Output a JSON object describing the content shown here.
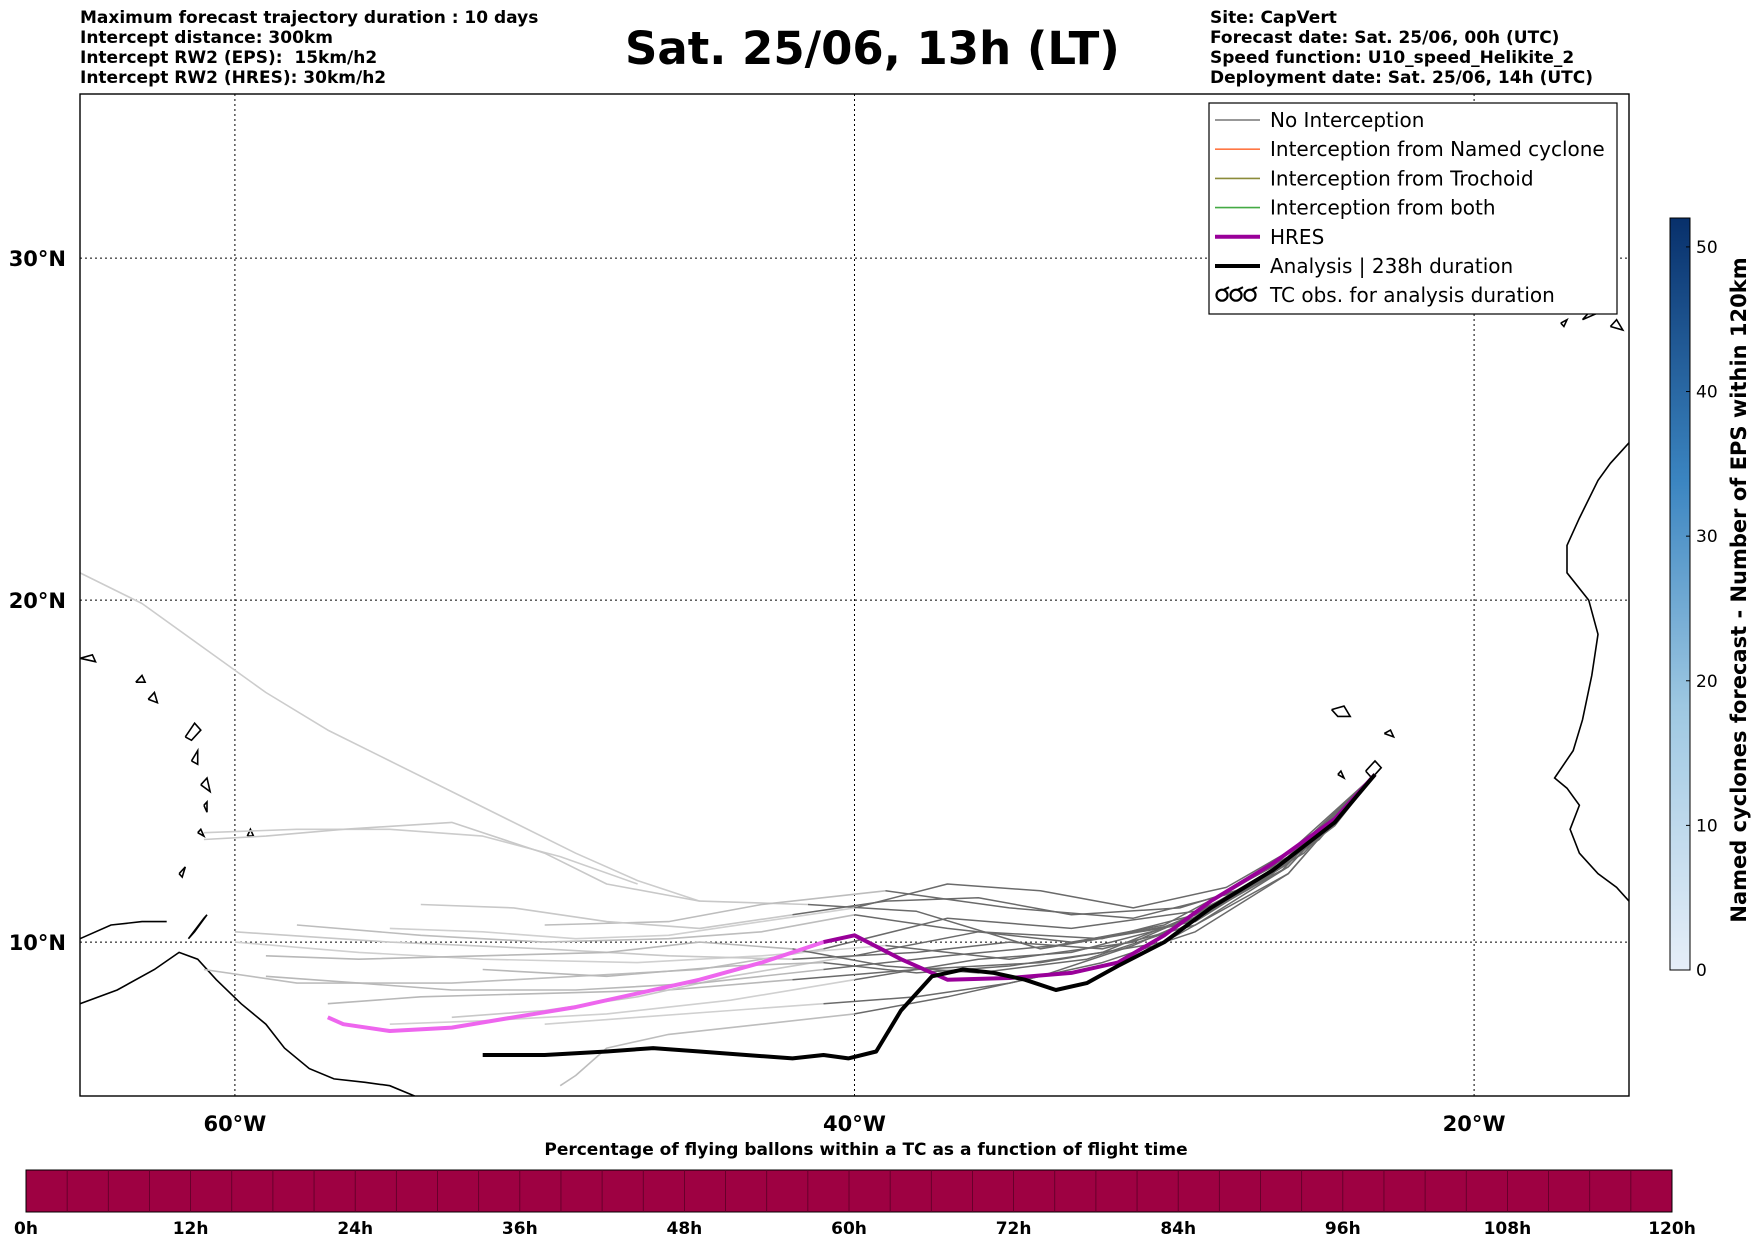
{
  "title": "Sat. 25/06, 13h (LT)",
  "header_left": [
    "Maximum forecast trajectory duration : 10 days",
    "Intercept distance: 300km",
    "Intercept RW2 (EPS):  15km/h2",
    "Intercept RW2 (HRES): 30km/h2"
  ],
  "header_right": [
    "Site: CapVert",
    "Forecast date: Sat. 25/06, 00h (UTC)",
    "Speed function: U10_speed_Helikite_2",
    "Deployment date: Sat. 25/06, 14h (UTC)"
  ],
  "map": {
    "lon_range": [
      -65,
      -15
    ],
    "lat_range": [
      5.5,
      34.8
    ],
    "lon_ticks": [
      -60,
      -40,
      -20
    ],
    "lon_tick_labels": [
      "60°W",
      "40°W",
      "20°W"
    ],
    "lat_ticks": [
      10,
      20,
      30
    ],
    "lat_tick_labels": [
      "10°N",
      "20°N",
      "30°N"
    ],
    "grid": true,
    "launch_site": {
      "lon": -23.2,
      "lat": 14.9
    }
  },
  "legend": {
    "placement": "top-right",
    "items": [
      {
        "label": "No Interception",
        "color": "#777777",
        "style": "thin-line"
      },
      {
        "label": "Interception from Named cyclone",
        "color": "#ff7744",
        "style": "thin-line"
      },
      {
        "label": "Interception from Trochoid",
        "color": "#8b8b3a",
        "style": "thin-line"
      },
      {
        "label": "Interception from both",
        "color": "#44aa44",
        "style": "thin-line"
      },
      {
        "label": "HRES",
        "color": "#990099",
        "style": "thick-line"
      },
      {
        "label": "Analysis | 238h duration",
        "color": "#000000",
        "style": "thick-line"
      },
      {
        "label": "TC obs. for analysis duration",
        "color": "#000000",
        "style": "tc-symbol"
      }
    ]
  },
  "trajectories": {
    "hres": [
      [
        -23.2,
        14.9
      ],
      [
        -24.5,
        13.6
      ],
      [
        -26.5,
        12.3
      ],
      [
        -28.5,
        11.2
      ],
      [
        -30,
        10.2
      ],
      [
        -31.5,
        9.4
      ],
      [
        -33,
        9.1
      ],
      [
        -35,
        8.95
      ],
      [
        -37,
        8.9
      ],
      [
        -38.5,
        9.5
      ],
      [
        -40,
        10.2
      ],
      [
        -41,
        10.0
      ],
      [
        -43,
        9.4
      ],
      [
        -45,
        8.9
      ],
      [
        -47,
        8.5
      ],
      [
        -49,
        8.1
      ],
      [
        -51,
        7.8
      ],
      [
        -53,
        7.5
      ],
      [
        -55,
        7.4
      ],
      [
        -56.5,
        7.6
      ],
      [
        -57,
        7.8
      ]
    ],
    "analysis": [
      [
        -23.2,
        14.9
      ],
      [
        -24.5,
        13.5
      ],
      [
        -26.5,
        12.1
      ],
      [
        -28.5,
        11.0
      ],
      [
        -30,
        10.0
      ],
      [
        -31.5,
        9.3
      ],
      [
        -32.5,
        8.8
      ],
      [
        -33.5,
        8.6
      ],
      [
        -34.5,
        8.9
      ],
      [
        -35.5,
        9.1
      ],
      [
        -36.5,
        9.2
      ],
      [
        -37.5,
        9.0
      ],
      [
        -38.5,
        8.0
      ],
      [
        -39.3,
        6.8
      ],
      [
        -40.2,
        6.6
      ],
      [
        -41,
        6.7
      ],
      [
        -42,
        6.6
      ],
      [
        -43.5,
        6.7
      ],
      [
        -45,
        6.8
      ],
      [
        -46.5,
        6.9
      ],
      [
        -48,
        6.8
      ],
      [
        -50,
        6.7
      ],
      [
        -52,
        6.7
      ]
    ],
    "ensemble": [
      [
        [
          -23.2,
          14.9
        ],
        [
          -26,
          12.5
        ],
        [
          -29,
          10.9
        ],
        [
          -33,
          10.4
        ],
        [
          -37,
          10.7
        ],
        [
          -41,
          9.8
        ],
        [
          -45,
          9.2
        ],
        [
          -49,
          9.0
        ],
        [
          -53,
          8.8
        ],
        [
          -58,
          8.8
        ],
        [
          -61,
          9.2
        ]
      ],
      [
        [
          -23.2,
          14.9
        ],
        [
          -25.5,
          12.8
        ],
        [
          -28,
          11.2
        ],
        [
          -31,
          10.0
        ],
        [
          -35,
          9.5
        ],
        [
          -39,
          9.9
        ],
        [
          -43,
          9.6
        ],
        [
          -47,
          9.4
        ],
        [
          -52,
          9.5
        ],
        [
          -56,
          9.7
        ],
        [
          -60,
          10.0
        ]
      ],
      [
        [
          -23.2,
          14.9
        ],
        [
          -26,
          12.2
        ],
        [
          -29.5,
          10.5
        ],
        [
          -34,
          9.8
        ],
        [
          -38,
          10.9
        ],
        [
          -41.5,
          11.1
        ],
        [
          -45,
          11.2
        ],
        [
          -48,
          11.7
        ],
        [
          -50,
          12.6
        ],
        [
          -53,
          13.5
        ],
        [
          -56.5,
          13.3
        ],
        [
          -59,
          13.1
        ],
        [
          -61,
          13.0
        ]
      ],
      [
        [
          -23.2,
          14.9
        ],
        [
          -26,
          12.0
        ],
        [
          -30,
          10.0
        ],
        [
          -34,
          9.4
        ],
        [
          -38,
          9.2
        ],
        [
          -42,
          8.9
        ],
        [
          -46,
          8.6
        ],
        [
          -50,
          8.5
        ],
        [
          -54,
          8.4
        ],
        [
          -57,
          8.2
        ]
      ],
      [
        [
          -23.2,
          14.9
        ],
        [
          -25,
          13.0
        ],
        [
          -27.5,
          11.5
        ],
        [
          -31,
          10.7
        ],
        [
          -35,
          11.0
        ],
        [
          -39,
          11.5
        ],
        [
          -43,
          11.1
        ],
        [
          -46,
          10.6
        ],
        [
          -50,
          10.5
        ]
      ],
      [
        [
          -23.2,
          14.9
        ],
        [
          -26.5,
          12.0
        ],
        [
          -30,
          10.4
        ],
        [
          -33,
          9.7
        ],
        [
          -36,
          9.5
        ],
        [
          -40,
          8.9
        ],
        [
          -44,
          8.3
        ],
        [
          -48,
          7.9
        ],
        [
          -52,
          7.7
        ],
        [
          -55,
          7.6
        ]
      ],
      [
        [
          -23.2,
          14.9
        ],
        [
          -26,
          12.4
        ],
        [
          -29,
          10.8
        ],
        [
          -32,
          10.1
        ],
        [
          -36,
          10.3
        ],
        [
          -40,
          9.6
        ],
        [
          -44,
          9.0
        ],
        [
          -47,
          8.4
        ],
        [
          -50,
          8.0
        ],
        [
          -53,
          7.8
        ]
      ],
      [
        [
          -23.2,
          14.9
        ],
        [
          -25.5,
          12.6
        ],
        [
          -28.5,
          11.0
        ],
        [
          -32,
          9.7
        ],
        [
          -35,
          9.3
        ],
        [
          -38,
          9.1
        ],
        [
          -41,
          9.4
        ],
        [
          -44,
          9.3
        ],
        [
          -48,
          9.0
        ],
        [
          -52,
          9.2
        ]
      ],
      [
        [
          -23.2,
          14.9
        ],
        [
          -26,
          12.3
        ],
        [
          -29,
          10.6
        ],
        [
          -33,
          10.0
        ],
        [
          -37,
          10.4
        ],
        [
          -40,
          10.8
        ],
        [
          -43,
          10.3
        ],
        [
          -46,
          10.1
        ],
        [
          -50,
          10.0
        ],
        [
          -54,
          10.2
        ],
        [
          -58,
          10.5
        ]
      ],
      [
        [
          -23.2,
          14.9
        ],
        [
          -26,
          12.0
        ],
        [
          -29,
          10.3
        ],
        [
          -32,
          9.4
        ],
        [
          -35,
          8.8
        ],
        [
          -38,
          8.4
        ],
        [
          -41,
          8.2
        ],
        [
          -44,
          8.0
        ],
        [
          -47,
          7.8
        ],
        [
          -50,
          7.6
        ]
      ],
      [
        [
          -23.2,
          14.9
        ],
        [
          -24.5,
          13.4
        ],
        [
          -27,
          11.7
        ],
        [
          -29.5,
          11.0
        ],
        [
          -33,
          10.8
        ],
        [
          -36,
          11.3
        ],
        [
          -39,
          11.2
        ],
        [
          -42,
          10.8
        ],
        [
          -45,
          10.4
        ],
        [
          -48,
          10.6
        ],
        [
          -51,
          11.0
        ],
        [
          -54,
          11.1
        ]
      ],
      [
        [
          -23.2,
          14.9
        ],
        [
          -26.5,
          12.2
        ],
        [
          -30,
          10.5
        ],
        [
          -33.5,
          9.9
        ],
        [
          -37,
          9.6
        ],
        [
          -41,
          9.2
        ],
        [
          -45,
          8.8
        ],
        [
          -49,
          8.6
        ],
        [
          -53,
          8.6
        ],
        [
          -56,
          8.8
        ],
        [
          -59,
          9.0
        ]
      ],
      [
        [
          -23.2,
          14.9
        ],
        [
          -26,
          12.4
        ],
        [
          -28.5,
          10.9
        ],
        [
          -31,
          9.9
        ],
        [
          -34,
          9.0
        ],
        [
          -37,
          8.4
        ],
        [
          -40,
          7.9
        ],
        [
          -43,
          7.6
        ],
        [
          -46,
          7.3
        ],
        [
          -48,
          6.9
        ],
        [
          -49,
          6.1
        ],
        [
          -49.5,
          5.8
        ]
      ],
      [
        [
          -23.2,
          14.9
        ],
        [
          -25.5,
          12.9
        ],
        [
          -28,
          11.6
        ],
        [
          -31,
          11.0
        ],
        [
          -34,
          11.5
        ],
        [
          -37,
          11.7
        ],
        [
          -40,
          11.0
        ],
        [
          -43,
          10.6
        ],
        [
          -46,
          10.2
        ],
        [
          -49,
          10.1
        ],
        [
          -52,
          10.3
        ],
        [
          -55,
          10.4
        ]
      ],
      [
        [
          -23.2,
          14.9
        ],
        [
          -26,
          12.2
        ],
        [
          -29,
          10.5
        ],
        [
          -32,
          9.8
        ],
        [
          -35,
          10.0
        ],
        [
          -38,
          9.7
        ],
        [
          -42,
          9.5
        ],
        [
          -46,
          9.6
        ],
        [
          -50,
          9.8
        ],
        [
          -55,
          10.0
        ],
        [
          -60,
          10.3
        ]
      ],
      [
        [
          -23.2,
          14.9
        ],
        [
          -26.2,
          12.1
        ],
        [
          -29.5,
          10.4
        ],
        [
          -32.5,
          9.5
        ],
        [
          -36,
          9.1
        ],
        [
          -39,
          9.3
        ],
        [
          -42,
          9.8
        ],
        [
          -45,
          10.0
        ],
        [
          -48,
          9.7
        ],
        [
          -52,
          9.6
        ],
        [
          -56,
          9.5
        ],
        [
          -59,
          9.6
        ]
      ]
    ],
    "ensemble_long": [
      [
        [
          -45,
          11.2
        ],
        [
          -47,
          11.8
        ],
        [
          -49,
          12.6
        ],
        [
          -51,
          13.5
        ],
        [
          -53,
          14.4
        ],
        [
          -55,
          15.3
        ],
        [
          -57,
          16.2
        ],
        [
          -59,
          17.3
        ],
        [
          -61,
          18.6
        ],
        [
          -63,
          19.9
        ],
        [
          -65,
          20.8
        ]
      ],
      [
        [
          -47,
          11.7
        ],
        [
          -49.5,
          12.5
        ],
        [
          -52,
          13.1
        ],
        [
          -55,
          13.3
        ],
        [
          -58,
          13.3
        ],
        [
          -61,
          13.2
        ]
      ]
    ]
  },
  "colorbar": {
    "label": "Named cyclones forecast - Number of EPS within 120km",
    "ticks": [
      "0",
      "10",
      "20",
      "30",
      "40",
      "50"
    ],
    "range": [
      0,
      52
    ],
    "color_low": "#e6eef8",
    "color_high": "#08306b"
  },
  "pct_bar": {
    "title": "Percentage of flying ballons within a TC as a function of flight time",
    "tick_labels": [
      "0h",
      "12h",
      "24h",
      "36h",
      "48h",
      "60h",
      "72h",
      "84h",
      "96h",
      "108h",
      "120h"
    ],
    "color": "#9e0142",
    "bins": 40
  }
}
